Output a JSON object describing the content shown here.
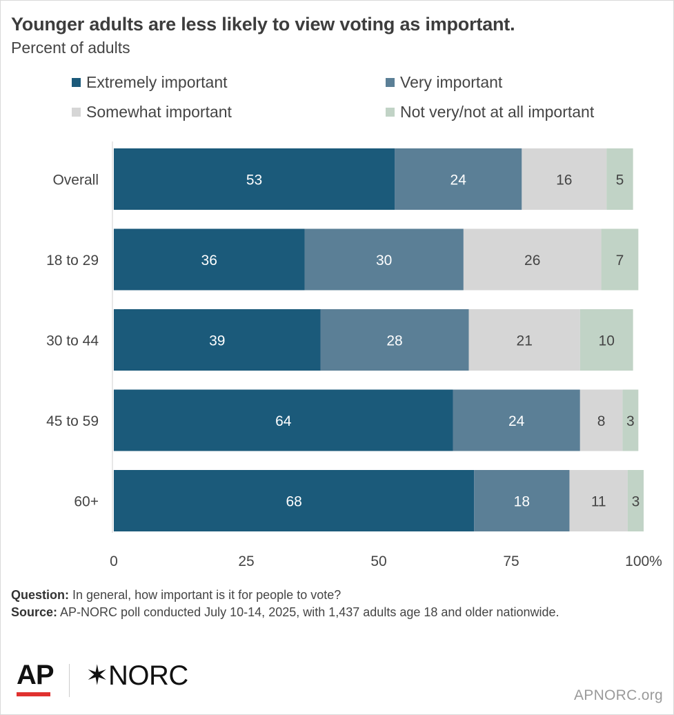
{
  "title": "Younger adults are less likely to view voting as important.",
  "subtitle": "Percent of adults",
  "legend": [
    {
      "label": "Extremely important",
      "color": "#1b5a7a"
    },
    {
      "label": "Very important",
      "color": "#5b7f96"
    },
    {
      "label": "Somewhat important",
      "color": "#d6d6d6"
    },
    {
      "label": "Not very/not at all important",
      "color": "#c1d3c6"
    }
  ],
  "chart_data": {
    "type": "bar",
    "orientation": "horizontal",
    "stacked": true,
    "categories": [
      "Overall",
      "18 to 29",
      "30 to 44",
      "45 to 59",
      "60+"
    ],
    "series": [
      {
        "name": "Extremely important",
        "color": "#1b5a7a",
        "label_color": "#ffffff",
        "values": [
          53,
          36,
          39,
          64,
          68
        ]
      },
      {
        "name": "Very important",
        "color": "#5b7f96",
        "label_color": "#ffffff",
        "values": [
          24,
          30,
          28,
          24,
          18
        ]
      },
      {
        "name": "Somewhat important",
        "color": "#d6d6d6",
        "label_color": "#444444",
        "values": [
          16,
          26,
          21,
          8,
          11
        ]
      },
      {
        "name": "Not very/not at all important",
        "color": "#c1d3c6",
        "label_color": "#444444",
        "values": [
          5,
          7,
          10,
          3,
          3
        ]
      }
    ],
    "xlim": [
      0,
      100
    ],
    "x_ticks": [
      0,
      25,
      50,
      75,
      100
    ],
    "x_tick_labels": [
      "0",
      "25",
      "50",
      "75",
      "100%"
    ],
    "title": "Younger adults are less likely to view voting as important.",
    "ylabel": "",
    "xlabel": ""
  },
  "footer": {
    "question_label": "Question:",
    "question_text": "In general, how important is it for people to vote?",
    "source_label": "Source:",
    "source_text": "AP-NORC poll conducted July 10-14, 2025, with 1,437 adults age 18 and older nationwide."
  },
  "logos": {
    "ap": "AP",
    "norc_symbol": "✶",
    "norc": "NORC"
  },
  "site": "APNORC.org"
}
